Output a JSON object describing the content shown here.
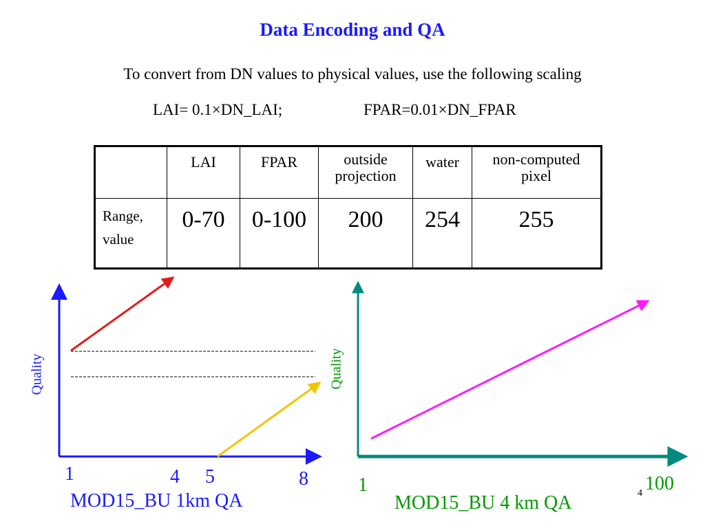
{
  "title": "Data Encoding and QA",
  "subtitle": "To convert from DN values to physical values, use the following scaling",
  "formulas": {
    "lai": "LAI= 0.1×DN_LAI;",
    "fpar": "FPAR=0.01×DN_FPAR"
  },
  "table": {
    "headers": {
      "corner": "",
      "lai": "LAI",
      "fpar": "FPAR",
      "outside_line1": "outside",
      "outside_line2": "projection",
      "water": "water",
      "noncomp_line1": "non-computed",
      "noncomp_line2": "pixel"
    },
    "row": {
      "label_line1": "Range,",
      "label_line2": "value",
      "lai": "0-70",
      "fpar": "0-100",
      "outside": "200",
      "water": "254",
      "noncomp": "255"
    }
  },
  "left_plot": {
    "ylabel": "Quality",
    "ticks": [
      "1",
      "4",
      "5",
      "8"
    ],
    "caption": "MOD15_BU 1km QA",
    "colors": {
      "axis": "#1a1aff",
      "upper_arrow": "#e41a1a",
      "lower_arrow": "#f2c500",
      "label": "#1a1aff"
    }
  },
  "right_plot": {
    "ylabel": "Quality",
    "ticks": [
      "1",
      "100"
    ],
    "caption": "MOD15_BU 4 km QA",
    "colors": {
      "axis": "#008b80",
      "arrow": "#ff1aff",
      "label": "#009900"
    }
  },
  "page_number": "4"
}
